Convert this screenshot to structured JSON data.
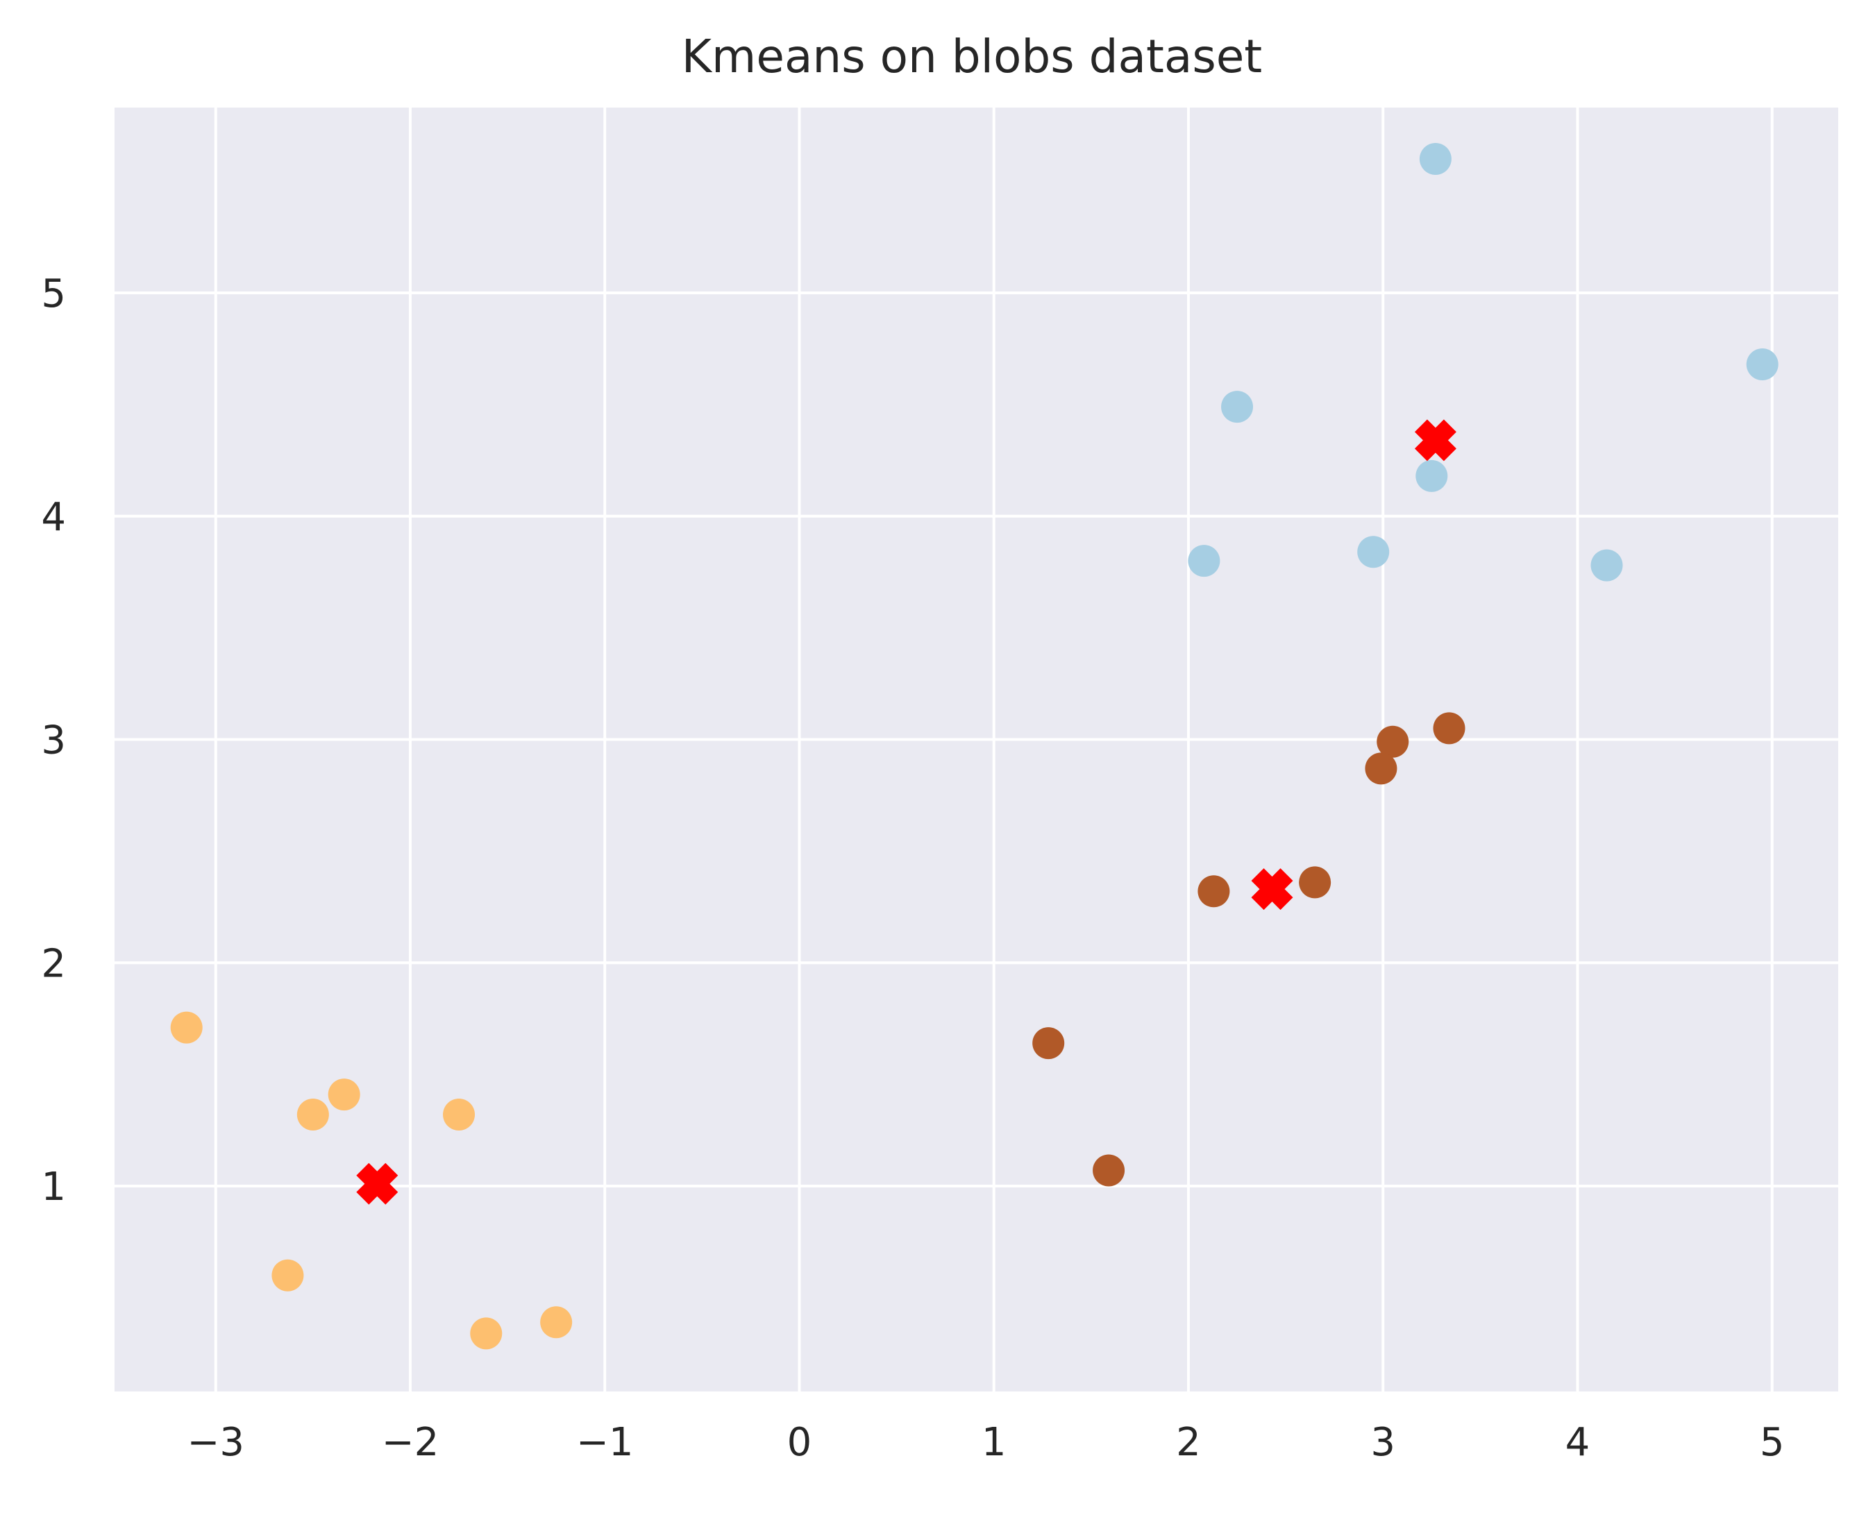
{
  "chart_data": {
    "type": "scatter",
    "title": "Kmeans on blobs dataset",
    "xlabel": "",
    "ylabel": "",
    "xlim": [
      -3.52,
      5.34
    ],
    "ylim": [
      0.08,
      5.83
    ],
    "xticks": [
      -3,
      -2,
      -1,
      0,
      1,
      2,
      3,
      4,
      5
    ],
    "xtick_labels": [
      "−3",
      "−2",
      "−1",
      "0",
      "1",
      "2",
      "3",
      "4",
      "5"
    ],
    "yticks": [
      1,
      2,
      3,
      4,
      5
    ],
    "ytick_labels": [
      "1",
      "2",
      "3",
      "4",
      "5"
    ],
    "grid": true,
    "background": "#EAEAF2",
    "series": [
      {
        "color": "#A6CEE3",
        "marker": "circle",
        "points": [
          {
            "x": 3.27,
            "y": 5.6
          },
          {
            "x": 4.95,
            "y": 4.68
          },
          {
            "x": 2.25,
            "y": 4.49
          },
          {
            "x": 3.25,
            "y": 4.18
          },
          {
            "x": 2.95,
            "y": 3.84
          },
          {
            "x": 2.08,
            "y": 3.8
          },
          {
            "x": 4.15,
            "y": 3.78
          }
        ]
      },
      {
        "color": "#B15928",
        "marker": "circle",
        "points": [
          {
            "x": 3.34,
            "y": 3.05
          },
          {
            "x": 3.05,
            "y": 2.99
          },
          {
            "x": 2.99,
            "y": 2.87
          },
          {
            "x": 2.65,
            "y": 2.36
          },
          {
            "x": 2.13,
            "y": 2.32
          },
          {
            "x": 1.28,
            "y": 1.64
          },
          {
            "x": 1.59,
            "y": 1.07
          }
        ]
      },
      {
        "color": "#FDBF6F",
        "marker": "circle",
        "points": [
          {
            "x": -3.15,
            "y": 1.71
          },
          {
            "x": -2.34,
            "y": 1.41
          },
          {
            "x": -2.5,
            "y": 1.32
          },
          {
            "x": -1.75,
            "y": 1.32
          },
          {
            "x": -2.63,
            "y": 0.6
          },
          {
            "x": -1.61,
            "y": 0.34
          },
          {
            "x": -1.25,
            "y": 0.39
          }
        ]
      },
      {
        "color": "#FF0000",
        "marker": "x",
        "points": [
          {
            "x": 3.27,
            "y": 4.34
          },
          {
            "x": 2.43,
            "y": 2.33
          },
          {
            "x": -2.17,
            "y": 1.01
          }
        ]
      }
    ]
  }
}
